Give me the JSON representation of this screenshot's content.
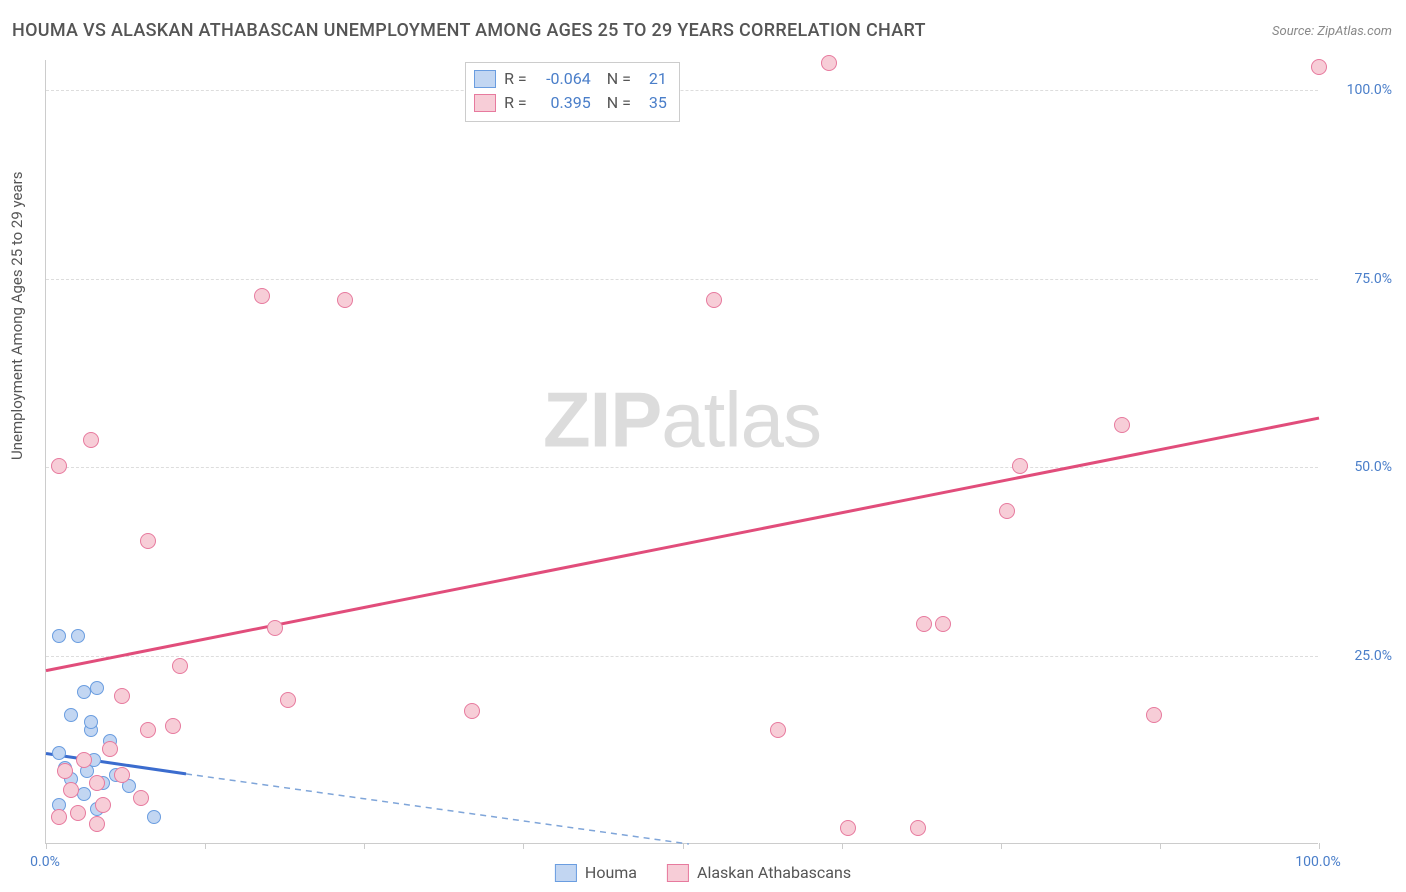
{
  "title": "HOUMA VS ALASKAN ATHABASCAN UNEMPLOYMENT AMONG AGES 25 TO 29 YEARS CORRELATION CHART",
  "source": "Source: ZipAtlas.com",
  "ylabel": "Unemployment Among Ages 25 to 29 years",
  "watermark_a": "ZIP",
  "watermark_b": "atlas",
  "chart": {
    "type": "scatter",
    "xlim": [
      0,
      100
    ],
    "ylim": [
      0,
      104
    ],
    "grid_color": "#dddddd",
    "border_color": "#cccccc",
    "background_color": "#ffffff",
    "ytick_labels": [
      "25.0%",
      "50.0%",
      "75.0%",
      "100.0%"
    ],
    "ytick_values": [
      25,
      50,
      75,
      100
    ],
    "xtick_bottom_left": "0.0%",
    "xtick_bottom_right": "100.0%",
    "xtick_marks": [
      0,
      12.5,
      25,
      37.5,
      50,
      62.5,
      75,
      87.5,
      100
    ],
    "ytick_color": "#4a7ec9"
  },
  "series": [
    {
      "name": "Houma",
      "legend_label": "Houma",
      "fill": "#c2d6f2",
      "stroke": "#6a9de0",
      "marker_size": 14,
      "r_label": "R =",
      "r": "-0.064",
      "n_label": "N =",
      "n": "21",
      "trend": {
        "x1": 0,
        "y1": 12,
        "x2": 50.5,
        "y2": 0,
        "dash_x2": 50.5,
        "dash_y2": 0,
        "color": "#3b6cce",
        "width": 3,
        "dash_color": "#7fa5d9"
      },
      "points": [
        {
          "x": 1.0,
          "y": 27.5
        },
        {
          "x": 2.5,
          "y": 27.5
        },
        {
          "x": 3.0,
          "y": 20.0
        },
        {
          "x": 4.0,
          "y": 20.5
        },
        {
          "x": 2.0,
          "y": 17.0
        },
        {
          "x": 3.5,
          "y": 15.0
        },
        {
          "x": 3.5,
          "y": 16.0
        },
        {
          "x": 1.0,
          "y": 12.0
        },
        {
          "x": 5.0,
          "y": 13.5
        },
        {
          "x": 1.5,
          "y": 10.0
        },
        {
          "x": 3.8,
          "y": 11.0
        },
        {
          "x": 2.0,
          "y": 8.5
        },
        {
          "x": 3.2,
          "y": 9.5
        },
        {
          "x": 5.5,
          "y": 9.0
        },
        {
          "x": 4.5,
          "y": 8.0
        },
        {
          "x": 6.5,
          "y": 7.5
        },
        {
          "x": 1.0,
          "y": 5.0
        },
        {
          "x": 2.5,
          "y": 4.0
        },
        {
          "x": 4.0,
          "y": 4.5
        },
        {
          "x": 8.5,
          "y": 3.5
        },
        {
          "x": 3.0,
          "y": 6.5
        }
      ]
    },
    {
      "name": "Alaskan Athabascans",
      "legend_label": "Alaskan Athabascans",
      "fill": "#f7cdd7",
      "stroke": "#e77a9e",
      "marker_size": 16,
      "r_label": "R =",
      "r": "0.395",
      "n_label": "N =",
      "n": "35",
      "trend": {
        "x1": 0,
        "y1": 23,
        "x2": 100,
        "y2": 56.5,
        "color": "#e14d7b",
        "width": 3
      },
      "points": [
        {
          "x": 61.5,
          "y": 103.5
        },
        {
          "x": 100.0,
          "y": 103.0
        },
        {
          "x": 17.0,
          "y": 72.5
        },
        {
          "x": 23.5,
          "y": 72.0
        },
        {
          "x": 52.5,
          "y": 72.0
        },
        {
          "x": 84.5,
          "y": 55.5
        },
        {
          "x": 3.5,
          "y": 53.5
        },
        {
          "x": 1.0,
          "y": 50.0
        },
        {
          "x": 76.5,
          "y": 50.0
        },
        {
          "x": 75.5,
          "y": 44.0
        },
        {
          "x": 8.0,
          "y": 40.0
        },
        {
          "x": 69.0,
          "y": 29.0
        },
        {
          "x": 70.5,
          "y": 29.0
        },
        {
          "x": 18.0,
          "y": 28.5
        },
        {
          "x": 10.5,
          "y": 23.5
        },
        {
          "x": 6.0,
          "y": 19.5
        },
        {
          "x": 19.0,
          "y": 19.0
        },
        {
          "x": 33.5,
          "y": 17.5
        },
        {
          "x": 87.0,
          "y": 17.0
        },
        {
          "x": 10.0,
          "y": 15.5
        },
        {
          "x": 8.0,
          "y": 15.0
        },
        {
          "x": 57.5,
          "y": 15.0
        },
        {
          "x": 5.0,
          "y": 12.5
        },
        {
          "x": 3.0,
          "y": 11.0
        },
        {
          "x": 1.5,
          "y": 9.5
        },
        {
          "x": 6.0,
          "y": 9.0
        },
        {
          "x": 4.0,
          "y": 8.0
        },
        {
          "x": 2.0,
          "y": 7.0
        },
        {
          "x": 7.5,
          "y": 6.0
        },
        {
          "x": 4.5,
          "y": 5.0
        },
        {
          "x": 2.5,
          "y": 4.0
        },
        {
          "x": 1.0,
          "y": 3.5
        },
        {
          "x": 63.0,
          "y": 2.0
        },
        {
          "x": 68.5,
          "y": 2.0
        },
        {
          "x": 4.0,
          "y": 2.5
        }
      ]
    }
  ]
}
